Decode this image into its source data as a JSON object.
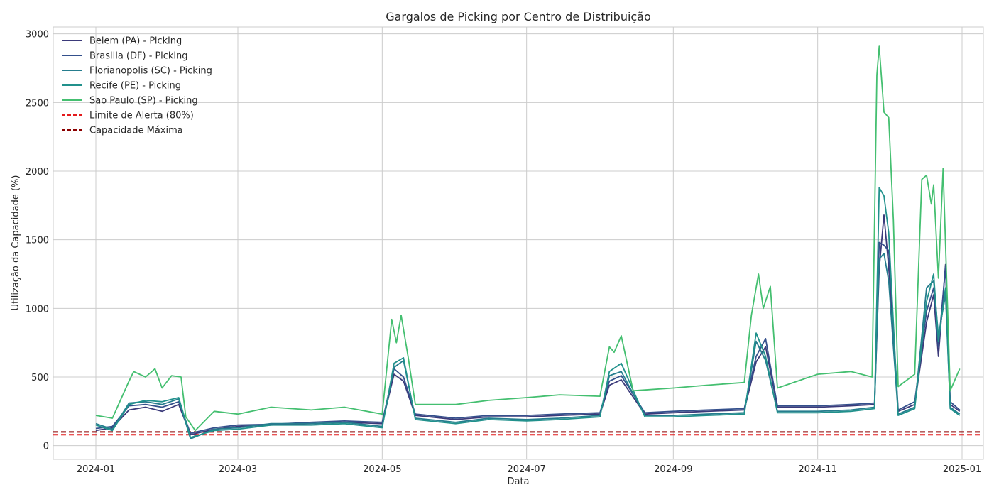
{
  "chart_data": {
    "type": "line",
    "title": "Gargalos de Picking por Centro de Distribuição",
    "xlabel": "Data",
    "ylabel": "Utilização da Capacidade (%)",
    "xlim": [
      "2023-12-14",
      "2025-01-10"
    ],
    "ylim": [
      -100,
      3050
    ],
    "grid": true,
    "legend_position": "top-left",
    "x_ticks": [
      "2024-01",
      "2024-03",
      "2024-05",
      "2024-07",
      "2024-09",
      "2024-11",
      "2025-01"
    ],
    "x_tick_dates": [
      "2024-01-01",
      "2024-03-01",
      "2024-05-01",
      "2024-07-01",
      "2024-09-01",
      "2024-11-01",
      "2025-01-01"
    ],
    "y_ticks": [
      0,
      500,
      1000,
      1500,
      2000,
      2500,
      3000
    ],
    "reference_lines": [
      {
        "name": "Limite de Alerta (80%)",
        "value": 80,
        "color": "#e41a1c",
        "style": "dashed"
      },
      {
        "name": "Capacidade Máxima",
        "value": 100,
        "color": "#8b0000",
        "style": "dashed"
      }
    ],
    "series": [
      {
        "name": "Belem (PA) - Picking",
        "color": "#3b3a7a",
        "points": [
          [
            "2024-01-01",
            110
          ],
          [
            "2024-01-08",
            130
          ],
          [
            "2024-01-15",
            260
          ],
          [
            "2024-01-22",
            280
          ],
          [
            "2024-01-29",
            250
          ],
          [
            "2024-02-05",
            300
          ],
          [
            "2024-02-10",
            80
          ],
          [
            "2024-02-20",
            120
          ],
          [
            "2024-03-01",
            140
          ],
          [
            "2024-03-15",
            150
          ],
          [
            "2024-04-01",
            160
          ],
          [
            "2024-04-15",
            170
          ],
          [
            "2024-05-01",
            160
          ],
          [
            "2024-05-06",
            520
          ],
          [
            "2024-05-10",
            470
          ],
          [
            "2024-05-15",
            220
          ],
          [
            "2024-06-01",
            190
          ],
          [
            "2024-06-15",
            210
          ],
          [
            "2024-07-01",
            210
          ],
          [
            "2024-07-15",
            220
          ],
          [
            "2024-08-01",
            230
          ],
          [
            "2024-08-05",
            440
          ],
          [
            "2024-08-10",
            480
          ],
          [
            "2024-08-20",
            230
          ],
          [
            "2024-09-01",
            240
          ],
          [
            "2024-09-15",
            250
          ],
          [
            "2024-10-01",
            260
          ],
          [
            "2024-10-06",
            610
          ],
          [
            "2024-10-10",
            720
          ],
          [
            "2024-10-15",
            280
          ],
          [
            "2024-11-01",
            280
          ],
          [
            "2024-11-15",
            290
          ],
          [
            "2024-11-25",
            300
          ],
          [
            "2024-11-27",
            1290
          ],
          [
            "2024-11-29",
            1680
          ],
          [
            "2024-12-01",
            1300
          ],
          [
            "2024-12-05",
            250
          ],
          [
            "2024-12-12",
            300
          ],
          [
            "2024-12-17",
            900
          ],
          [
            "2024-12-20",
            1100
          ],
          [
            "2024-12-22",
            650
          ],
          [
            "2024-12-25",
            1320
          ],
          [
            "2024-12-27",
            300
          ],
          [
            "2024-12-31",
            250
          ]
        ]
      },
      {
        "name": "Brasilia (DF) - Picking",
        "color": "#34508c",
        "points": [
          [
            "2024-01-01",
            125
          ],
          [
            "2024-01-08",
            140
          ],
          [
            "2024-01-15",
            290
          ],
          [
            "2024-01-22",
            300
          ],
          [
            "2024-01-29",
            280
          ],
          [
            "2024-02-05",
            320
          ],
          [
            "2024-02-10",
            90
          ],
          [
            "2024-02-20",
            130
          ],
          [
            "2024-03-01",
            150
          ],
          [
            "2024-03-15",
            155
          ],
          [
            "2024-04-01",
            170
          ],
          [
            "2024-04-15",
            180
          ],
          [
            "2024-05-01",
            170
          ],
          [
            "2024-05-06",
            560
          ],
          [
            "2024-05-10",
            500
          ],
          [
            "2024-05-15",
            230
          ],
          [
            "2024-06-01",
            200
          ],
          [
            "2024-06-15",
            220
          ],
          [
            "2024-07-01",
            220
          ],
          [
            "2024-07-15",
            230
          ],
          [
            "2024-08-01",
            240
          ],
          [
            "2024-08-05",
            470
          ],
          [
            "2024-08-10",
            510
          ],
          [
            "2024-08-20",
            240
          ],
          [
            "2024-09-01",
            250
          ],
          [
            "2024-09-15",
            260
          ],
          [
            "2024-10-01",
            270
          ],
          [
            "2024-10-06",
            650
          ],
          [
            "2024-10-10",
            780
          ],
          [
            "2024-10-15",
            290
          ],
          [
            "2024-11-01",
            290
          ],
          [
            "2024-11-15",
            300
          ],
          [
            "2024-11-25",
            310
          ],
          [
            "2024-11-27",
            1480
          ],
          [
            "2024-11-29",
            1460
          ],
          [
            "2024-12-01",
            1420
          ],
          [
            "2024-12-05",
            260
          ],
          [
            "2024-12-12",
            320
          ],
          [
            "2024-12-17",
            980
          ],
          [
            "2024-12-20",
            1150
          ],
          [
            "2024-12-22",
            720
          ],
          [
            "2024-12-25",
            1300
          ],
          [
            "2024-12-27",
            320
          ],
          [
            "2024-12-31",
            260
          ]
        ]
      },
      {
        "name": "Florianopolis (SC) - Picking",
        "color": "#267d8e",
        "points": [
          [
            "2024-01-01",
            160
          ],
          [
            "2024-01-08",
            120
          ],
          [
            "2024-01-15",
            310
          ],
          [
            "2024-01-22",
            320
          ],
          [
            "2024-01-29",
            300
          ],
          [
            "2024-02-05",
            340
          ],
          [
            "2024-02-10",
            50
          ],
          [
            "2024-02-20",
            120
          ],
          [
            "2024-03-01",
            130
          ],
          [
            "2024-03-15",
            160
          ],
          [
            "2024-04-01",
            160
          ],
          [
            "2024-04-15",
            170
          ],
          [
            "2024-05-01",
            140
          ],
          [
            "2024-05-06",
            570
          ],
          [
            "2024-05-10",
            620
          ],
          [
            "2024-05-15",
            200
          ],
          [
            "2024-06-01",
            170
          ],
          [
            "2024-06-15",
            200
          ],
          [
            "2024-07-01",
            190
          ],
          [
            "2024-07-15",
            200
          ],
          [
            "2024-08-01",
            220
          ],
          [
            "2024-08-05",
            510
          ],
          [
            "2024-08-10",
            540
          ],
          [
            "2024-08-20",
            220
          ],
          [
            "2024-09-01",
            220
          ],
          [
            "2024-09-15",
            230
          ],
          [
            "2024-10-01",
            240
          ],
          [
            "2024-10-06",
            760
          ],
          [
            "2024-10-10",
            620
          ],
          [
            "2024-10-15",
            250
          ],
          [
            "2024-11-01",
            250
          ],
          [
            "2024-11-15",
            260
          ],
          [
            "2024-11-25",
            280
          ],
          [
            "2024-11-27",
            1360
          ],
          [
            "2024-11-29",
            1400
          ],
          [
            "2024-12-01",
            1200
          ],
          [
            "2024-12-05",
            230
          ],
          [
            "2024-12-12",
            280
          ],
          [
            "2024-12-17",
            1150
          ],
          [
            "2024-12-20",
            1200
          ],
          [
            "2024-12-22",
            800
          ],
          [
            "2024-12-25",
            1100
          ],
          [
            "2024-12-27",
            280
          ],
          [
            "2024-12-31",
            230
          ]
        ]
      },
      {
        "name": "Recife (PE) - Picking",
        "color": "#21918c",
        "points": [
          [
            "2024-01-01",
            150
          ],
          [
            "2024-01-08",
            110
          ],
          [
            "2024-01-15",
            300
          ],
          [
            "2024-01-22",
            330
          ],
          [
            "2024-01-29",
            320
          ],
          [
            "2024-02-05",
            350
          ],
          [
            "2024-02-10",
            60
          ],
          [
            "2024-02-20",
            110
          ],
          [
            "2024-03-01",
            120
          ],
          [
            "2024-03-15",
            150
          ],
          [
            "2024-04-01",
            150
          ],
          [
            "2024-04-15",
            160
          ],
          [
            "2024-05-01",
            130
          ],
          [
            "2024-05-06",
            600
          ],
          [
            "2024-05-10",
            640
          ],
          [
            "2024-05-15",
            190
          ],
          [
            "2024-06-01",
            160
          ],
          [
            "2024-06-15",
            190
          ],
          [
            "2024-07-01",
            180
          ],
          [
            "2024-07-15",
            190
          ],
          [
            "2024-08-01",
            210
          ],
          [
            "2024-08-05",
            540
          ],
          [
            "2024-08-10",
            600
          ],
          [
            "2024-08-20",
            210
          ],
          [
            "2024-09-01",
            210
          ],
          [
            "2024-09-15",
            220
          ],
          [
            "2024-10-01",
            230
          ],
          [
            "2024-10-06",
            820
          ],
          [
            "2024-10-10",
            650
          ],
          [
            "2024-10-15",
            240
          ],
          [
            "2024-11-01",
            240
          ],
          [
            "2024-11-15",
            250
          ],
          [
            "2024-11-25",
            270
          ],
          [
            "2024-11-27",
            1880
          ],
          [
            "2024-11-29",
            1820
          ],
          [
            "2024-12-01",
            1550
          ],
          [
            "2024-12-05",
            220
          ],
          [
            "2024-12-12",
            270
          ],
          [
            "2024-12-17",
            1050
          ],
          [
            "2024-12-20",
            1250
          ],
          [
            "2024-12-22",
            760
          ],
          [
            "2024-12-25",
            1150
          ],
          [
            "2024-12-27",
            270
          ],
          [
            "2024-12-31",
            220
          ]
        ]
      },
      {
        "name": "Sao Paulo (SP) - Picking",
        "color": "#44bf70",
        "points": [
          [
            "2024-01-01",
            220
          ],
          [
            "2024-01-08",
            200
          ],
          [
            "2024-01-15",
            470
          ],
          [
            "2024-01-17",
            540
          ],
          [
            "2024-01-22",
            500
          ],
          [
            "2024-01-26",
            560
          ],
          [
            "2024-01-29",
            420
          ],
          [
            "2024-02-02",
            510
          ],
          [
            "2024-02-06",
            500
          ],
          [
            "2024-02-08",
            210
          ],
          [
            "2024-02-12",
            110
          ],
          [
            "2024-02-20",
            250
          ],
          [
            "2024-03-01",
            230
          ],
          [
            "2024-03-15",
            280
          ],
          [
            "2024-04-01",
            260
          ],
          [
            "2024-04-15",
            280
          ],
          [
            "2024-05-01",
            230
          ],
          [
            "2024-05-05",
            920
          ],
          [
            "2024-05-07",
            750
          ],
          [
            "2024-05-09",
            950
          ],
          [
            "2024-05-12",
            640
          ],
          [
            "2024-05-15",
            300
          ],
          [
            "2024-06-01",
            300
          ],
          [
            "2024-06-15",
            330
          ],
          [
            "2024-07-01",
            350
          ],
          [
            "2024-07-15",
            370
          ],
          [
            "2024-08-01",
            360
          ],
          [
            "2024-08-05",
            720
          ],
          [
            "2024-08-07",
            680
          ],
          [
            "2024-08-10",
            800
          ],
          [
            "2024-08-15",
            400
          ],
          [
            "2024-09-01",
            420
          ],
          [
            "2024-09-15",
            440
          ],
          [
            "2024-10-01",
            460
          ],
          [
            "2024-10-04",
            950
          ],
          [
            "2024-10-07",
            1250
          ],
          [
            "2024-10-09",
            1000
          ],
          [
            "2024-10-12",
            1160
          ],
          [
            "2024-10-15",
            420
          ],
          [
            "2024-11-01",
            520
          ],
          [
            "2024-11-15",
            540
          ],
          [
            "2024-11-24",
            500
          ],
          [
            "2024-11-26",
            2700
          ],
          [
            "2024-11-27",
            2910
          ],
          [
            "2024-11-29",
            2430
          ],
          [
            "2024-12-01",
            2390
          ],
          [
            "2024-12-03",
            1640
          ],
          [
            "2024-12-05",
            430
          ],
          [
            "2024-12-12",
            520
          ],
          [
            "2024-12-15",
            1940
          ],
          [
            "2024-12-17",
            1970
          ],
          [
            "2024-12-19",
            1760
          ],
          [
            "2024-12-20",
            1900
          ],
          [
            "2024-12-22",
            1220
          ],
          [
            "2024-12-24",
            2020
          ],
          [
            "2024-12-27",
            400
          ],
          [
            "2024-12-31",
            560
          ]
        ]
      }
    ]
  }
}
